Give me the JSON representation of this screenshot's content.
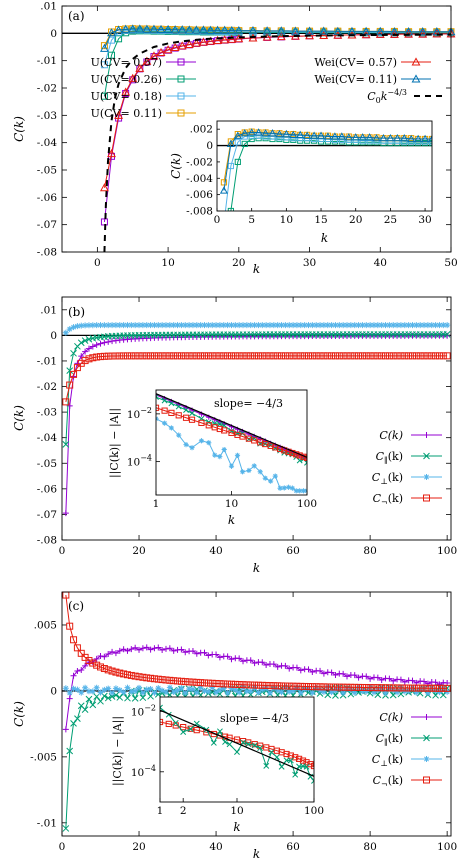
{
  "chart_data": [
    {
      "type": "line",
      "panel_label": "(a)",
      "xlabel": "k",
      "ylabel": "C(k)",
      "xlim": [
        -5,
        50
      ],
      "ylim": [
        -0.08,
        0.01
      ],
      "xticks": [
        0,
        10,
        20,
        30,
        40,
        50
      ],
      "yticks": [
        0.01,
        0,
        -0.01,
        -0.02,
        -0.03,
        -0.04,
        -0.05,
        -0.06,
        -0.07,
        -0.08
      ],
      "series": [
        {
          "name": "U(CV= 0.57)",
          "color": "#9400d3",
          "marker": "square",
          "x": [
            1,
            2,
            3,
            4,
            5,
            6,
            7,
            8,
            9,
            10,
            11,
            12,
            13,
            14,
            15,
            16,
            17,
            18,
            19,
            20,
            21,
            22,
            23,
            24,
            25,
            26,
            27,
            28,
            29,
            30,
            31,
            32,
            33,
            34,
            35,
            36,
            37,
            38,
            39,
            40,
            41,
            42,
            43,
            44,
            45,
            46,
            47,
            48,
            49,
            50
          ],
          "y": [
            -0.069,
            -0.045,
            -0.031,
            -0.022,
            -0.017,
            -0.013,
            -0.0105,
            -0.0085,
            -0.0072,
            -0.0062,
            -0.0054,
            -0.0047,
            -0.0042,
            -0.0037,
            -0.0033,
            -0.003,
            -0.0027,
            -0.0025,
            -0.0023,
            -0.0021,
            -0.0019,
            -0.0017,
            -0.0016,
            -0.0015,
            -0.0014,
            -0.0013,
            -0.0012,
            -0.0011,
            -0.001,
            -0.0009,
            -0.0008,
            -0.0008,
            -0.0007,
            -0.0007,
            -0.0006,
            -0.0006,
            -0.0005,
            -0.0005,
            -0.0005,
            -0.0004,
            -0.0004,
            -0.0004,
            -0.0003,
            -0.0003,
            -0.0003,
            -0.0003,
            -0.0002,
            -0.0002,
            -0.0002,
            -0.0002
          ]
        },
        {
          "name": "U(CV= 0.26)",
          "color": "#009e73",
          "marker": "square",
          "x": [
            1,
            2,
            3,
            4,
            5,
            6,
            7,
            8,
            9,
            10,
            11,
            12,
            13,
            14,
            15,
            16,
            17,
            18,
            19,
            20,
            21,
            22,
            23,
            24,
            25,
            26,
            27,
            28,
            29,
            30,
            31,
            32,
            33,
            34,
            35,
            36,
            37,
            38,
            39,
            40,
            41,
            42,
            43,
            44,
            45,
            46,
            47,
            48,
            49,
            50
          ],
          "y": [
            -0.023,
            -0.008,
            -0.002,
            0.0002,
            0.0008,
            0.0009,
            0.0009,
            0.0008,
            0.0008,
            0.0007,
            0.0007,
            0.0006,
            0.0006,
            0.0006,
            0.0005,
            0.0005,
            0.0005,
            0.0005,
            0.0004,
            0.0004,
            0.0004,
            0.0004,
            0.0004,
            0.0003,
            0.0003,
            0.0003,
            0.0003,
            0.0003,
            0.0003,
            0.0003,
            0.0003,
            0.0002,
            0.0002,
            0.0002,
            0.0002,
            0.0002,
            0.0002,
            0.0002,
            0.0002,
            0.0002,
            0.0002,
            0.0002,
            0.0002,
            0.0002,
            0.0002,
            0.0002,
            0.0002,
            0.0002,
            0.0002,
            0.0002
          ]
        },
        {
          "name": "U(CV= 0.18)",
          "color": "#56b4e9",
          "marker": "square",
          "x": [
            1,
            2,
            3,
            4,
            5,
            6,
            7,
            8,
            9,
            10,
            11,
            12,
            13,
            14,
            15,
            16,
            17,
            18,
            19,
            20,
            21,
            22,
            23,
            24,
            25,
            26,
            27,
            28,
            29,
            30,
            31,
            32,
            33,
            34,
            35,
            36,
            37,
            38,
            39,
            40,
            41,
            42,
            43,
            44,
            45,
            46,
            47,
            48,
            49,
            50
          ],
          "y": [
            -0.0115,
            -0.0025,
            0.0004,
            0.0011,
            0.0012,
            0.0012,
            0.0011,
            0.0011,
            0.001,
            0.001,
            0.0009,
            0.0009,
            0.0009,
            0.0008,
            0.0008,
            0.0008,
            0.0007,
            0.0007,
            0.0007,
            0.0007,
            0.0006,
            0.0006,
            0.0006,
            0.0006,
            0.0006,
            0.0006,
            0.0005,
            0.0005,
            0.0005,
            0.0005,
            0.0005,
            0.0005,
            0.0005,
            0.0005,
            0.0004,
            0.0004,
            0.0004,
            0.0004,
            0.0004,
            0.0004,
            0.0004,
            0.0004,
            0.0004,
            0.0004,
            0.0004,
            0.0004,
            0.0004,
            0.0004,
            0.0004,
            0.0004
          ]
        },
        {
          "name": "U(CV= 0.11)",
          "color": "#e69f00",
          "marker": "square",
          "x": [
            1,
            2,
            3,
            4,
            5,
            6,
            7,
            8,
            9,
            10,
            11,
            12,
            13,
            14,
            15,
            16,
            17,
            18,
            19,
            20,
            21,
            22,
            23,
            24,
            25,
            26,
            27,
            28,
            29,
            30,
            31,
            32,
            33,
            34,
            35,
            36,
            37,
            38,
            39,
            40,
            41,
            42,
            43,
            44,
            45,
            46,
            47,
            48,
            49,
            50
          ],
          "y": [
            -0.0045,
            0.0005,
            0.0014,
            0.0016,
            0.0017,
            0.0016,
            0.0016,
            0.0015,
            0.0015,
            0.0014,
            0.0014,
            0.0013,
            0.0013,
            0.0012,
            0.0012,
            0.0012,
            0.0011,
            0.0011,
            0.0011,
            0.001,
            0.001,
            0.001,
            0.001,
            0.0009,
            0.0009,
            0.0009,
            0.0009,
            0.0009,
            0.0008,
            0.0008,
            0.0008,
            0.0008,
            0.0008,
            0.0008,
            0.0007,
            0.0007,
            0.0007,
            0.0007,
            0.0007,
            0.0007,
            0.0007,
            0.0007,
            0.0007,
            0.0006,
            0.0006,
            0.0006,
            0.0006,
            0.0006,
            0.0006,
            0.0006
          ]
        },
        {
          "name": "Wei(CV= 0.57)",
          "color": "#e51e10",
          "marker": "triangle",
          "x": [
            1,
            2,
            3,
            4,
            5,
            6,
            7,
            8,
            9,
            10,
            11,
            12,
            13,
            14,
            15,
            16,
            17,
            18,
            19,
            20,
            21,
            22,
            23,
            24,
            25,
            26,
            27,
            28,
            29,
            30,
            31,
            32,
            33,
            34,
            35,
            36,
            37,
            38,
            39,
            40,
            41,
            42,
            43,
            44,
            45,
            46,
            47,
            48,
            49,
            50
          ],
          "y": [
            -0.0565,
            -0.044,
            -0.03,
            -0.0215,
            -0.0165,
            -0.0128,
            -0.0102,
            -0.0083,
            -0.007,
            -0.006,
            -0.0052,
            -0.0046,
            -0.0041,
            -0.0036,
            -0.0032,
            -0.0029,
            -0.0026,
            -0.0024,
            -0.0022,
            -0.002,
            -0.0018,
            -0.0017,
            -0.0016,
            -0.0014,
            -0.0013,
            -0.0012,
            -0.0011,
            -0.001,
            -0.001,
            -0.0009,
            -0.0008,
            -0.0008,
            -0.0007,
            -0.0007,
            -0.0006,
            -0.0006,
            -0.0005,
            -0.0005,
            -0.0005,
            -0.0004,
            -0.0004,
            -0.0004,
            -0.0003,
            -0.0003,
            -0.0003,
            -0.0003,
            -0.0002,
            -0.0002,
            -0.0002,
            -0.0002
          ]
        },
        {
          "name": "Wei(CV= 0.11)",
          "color": "#0072b2",
          "marker": "triangle",
          "x": [
            1,
            2,
            3,
            4,
            5,
            6,
            7,
            8,
            9,
            10,
            11,
            12,
            13,
            14,
            15,
            16,
            17,
            18,
            19,
            20,
            21,
            22,
            23,
            24,
            25,
            26,
            27,
            28,
            29,
            30,
            31,
            32,
            33,
            34,
            35,
            36,
            37,
            38,
            39,
            40,
            41,
            42,
            43,
            44,
            45,
            46,
            47,
            48,
            49,
            50
          ],
          "y": [
            -0.0055,
            0.0002,
            0.0012,
            0.0015,
            0.0016,
            0.0016,
            0.0015,
            0.0015,
            0.0014,
            0.0014,
            0.0013,
            0.0013,
            0.0012,
            0.0012,
            0.0012,
            0.0011,
            0.0011,
            0.0011,
            0.001,
            0.001,
            0.001,
            0.001,
            0.0009,
            0.0009,
            0.0009,
            0.0009,
            0.0009,
            0.0008,
            0.0008,
            0.0008,
            0.0008,
            0.0008,
            0.0008,
            0.0007,
            0.0007,
            0.0007,
            0.0007,
            0.0007,
            0.0007,
            0.0007,
            0.0007,
            0.0006,
            0.0006,
            0.0006,
            0.0006,
            0.0006,
            0.0006,
            0.0006,
            0.0006,
            0.0006
          ]
        },
        {
          "name": "C0k^{-4/3}",
          "color": "#000000",
          "marker": "dash",
          "x": [
            1,
            1.2,
            1.5,
            2,
            2.5,
            3,
            4,
            5,
            6,
            8,
            10,
            12,
            15,
            20,
            25,
            30,
            40,
            50
          ],
          "y": [
            -0.08,
            -0.063,
            -0.047,
            -0.032,
            -0.0236,
            -0.0185,
            -0.0127,
            -0.0094,
            -0.0074,
            -0.005,
            -0.0037,
            -0.0029,
            -0.0021,
            -0.0015,
            -0.0011,
            -0.00085,
            -0.00059,
            -0.00044
          ]
        }
      ],
      "inset": {
        "xlabel": "k",
        "ylabel": "C(k)",
        "xlim": [
          0,
          31
        ],
        "ylim": [
          -0.008,
          0.003
        ],
        "xticks": [
          0,
          5,
          10,
          15,
          20,
          25,
          30
        ],
        "yticks": [
          0.002,
          0,
          -0.002,
          -0.004,
          -0.006,
          -0.008
        ]
      }
    },
    {
      "type": "line",
      "panel_label": "(b)",
      "xlabel": "k",
      "ylabel": "C(k)",
      "xlim": [
        0,
        101
      ],
      "ylim": [
        -0.08,
        0.015
      ],
      "xticks": [
        0,
        20,
        40,
        60,
        80,
        100
      ],
      "yticks": [
        0.01,
        0,
        -0.01,
        -0.02,
        -0.03,
        -0.04,
        -0.05,
        -0.06,
        -0.07,
        -0.08
      ],
      "series": [
        {
          "name": "C(k)",
          "color": "#9400d3",
          "marker": "plus"
        },
        {
          "name": "C_∥(k)",
          "color": "#009e73",
          "marker": "cross"
        },
        {
          "name": "C_⊥(k)",
          "color": "#56b4e9",
          "marker": "star"
        },
        {
          "name": "C_¬(k)",
          "color": "#e51e10",
          "marker": "square"
        }
      ],
      "inset": {
        "xlabel": "k",
        "ylabel": "||C(k)| − |A||",
        "scale": "log-log",
        "xticks": [
          1,
          10,
          100
        ],
        "yticks": [
          "10^{-2}",
          "10^{-4}"
        ],
        "annotation": "slope= −4/3"
      }
    },
    {
      "type": "line",
      "panel_label": "(c)",
      "xlabel": "k",
      "ylabel": "C(k)",
      "xlim": [
        0,
        101
      ],
      "ylim": [
        -0.011,
        0.0075
      ],
      "xticks": [
        0,
        20,
        40,
        60,
        80,
        100
      ],
      "yticks": [
        0.005,
        0,
        -0.005,
        -0.01
      ],
      "series": [
        {
          "name": "C(k)",
          "color": "#9400d3",
          "marker": "plus"
        },
        {
          "name": "C_∥(k)",
          "color": "#009e73",
          "marker": "cross"
        },
        {
          "name": "C_⊥(k)",
          "color": "#56b4e9",
          "marker": "star"
        },
        {
          "name": "C_¬(k)",
          "color": "#e51e10",
          "marker": "square"
        }
      ],
      "inset": {
        "xlabel": "k",
        "ylabel": "||C(k)| − |A||",
        "scale": "log-log",
        "xticks": [
          1,
          2,
          10,
          100
        ],
        "yticks": [
          "10^{-2}",
          "10^{-4}"
        ],
        "annotation": "slope= −4/3"
      }
    }
  ]
}
